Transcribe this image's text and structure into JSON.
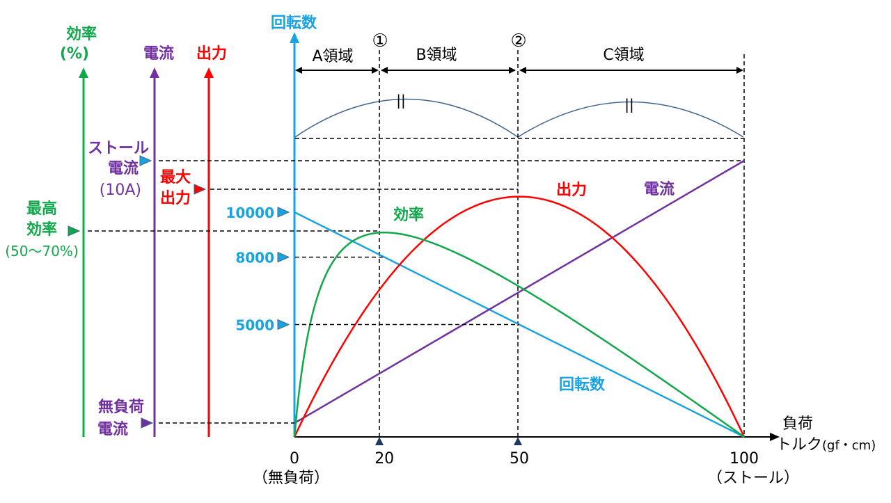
{
  "colors": {
    "efficiency": "#11a84b",
    "current": "#7030a0",
    "output": "#ff0000",
    "speed": "#1aa3e0",
    "arc": "#40648c",
    "black": "#000000"
  },
  "axes": {
    "efficiency": {
      "title_line1": "効率",
      "title_line2": "(%)"
    },
    "current": {
      "title": "電流"
    },
    "output": {
      "title": "出力"
    },
    "speed": {
      "title": "回転数"
    },
    "torque": {
      "title_line1": "負荷",
      "title_line2": "トルク",
      "title_unit": "(gf・cm)"
    }
  },
  "markers": {
    "stall_current": {
      "line1": "ストール",
      "line2": "電流",
      "line3": "(10A)"
    },
    "max_output": {
      "line1": "最大",
      "line2": "出力"
    },
    "max_efficiency": {
      "line1": "最高",
      "line2": "効率",
      "line3": "(50〜70%)"
    },
    "no_load_current": {
      "line1": "無負荷",
      "line2": "電流"
    },
    "speed_ticks": [
      "10000",
      "8000",
      "5000"
    ]
  },
  "points": {
    "p1": "①",
    "p2": "②"
  },
  "regions": {
    "a": "A領域",
    "b": "B領域",
    "c": "C領域"
  },
  "equal_mark": "||",
  "chart_data": {
    "type": "line",
    "x": [
      0,
      20,
      50,
      100
    ],
    "x_tick_labels": [
      "0",
      "20",
      "50",
      "100"
    ],
    "x_sub_labels": {
      "0": "（無負荷）",
      "100": "（ストール）"
    },
    "xlim": [
      0,
      100
    ],
    "xlabel": "負荷トルク(gf・cm)",
    "speed_ylim": [
      0,
      10000
    ],
    "speed_yticks": [
      10000,
      8000,
      5000
    ],
    "series": [
      {
        "name": "回転数",
        "color": "#1aa3e0",
        "x": [
          0,
          20,
          50,
          100
        ],
        "y": [
          10000,
          8000,
          5000,
          0
        ]
      },
      {
        "name": "電流",
        "color": "#7030a0",
        "shape": "linear",
        "no_load_fraction": 0.05,
        "stall_fraction": 1.0
      },
      {
        "name": "出力",
        "color": "#ff0000",
        "shape": "parabola",
        "peak_x": 50,
        "peak_fraction": 0.87
      },
      {
        "name": "効率",
        "color": "#11a84b",
        "shape": "efficiency",
        "peak_x": 20,
        "peak_fraction": 0.74
      }
    ]
  }
}
